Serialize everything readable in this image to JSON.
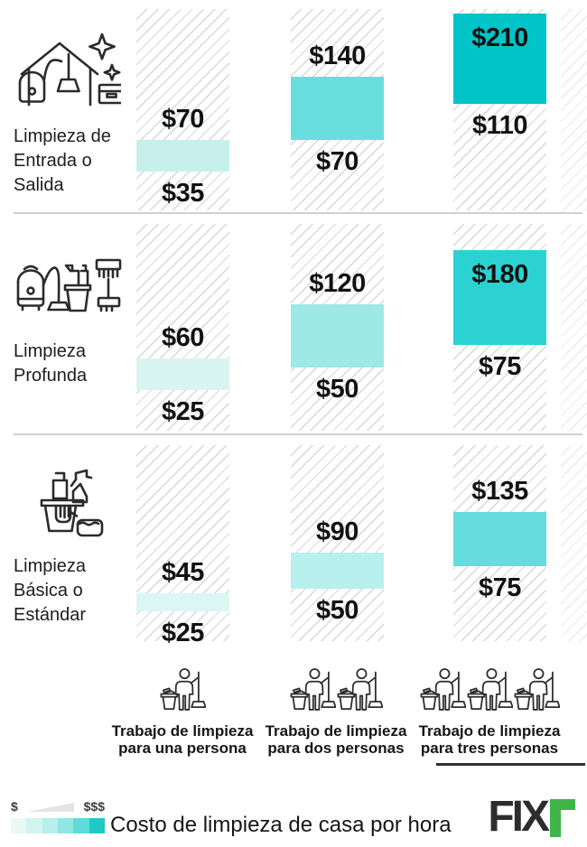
{
  "chart_data": {
    "type": "range-bar-matrix",
    "title": "Costo de limpieza de casa por hora",
    "value_unit": "$ per hora",
    "legend_position": "bottom-left",
    "columns": [
      {
        "label": "Trabajo de limpieza\npara una persona",
        "persons": 1
      },
      {
        "label": "Trabajo de limpieza\npara dos personas",
        "persons": 2
      },
      {
        "label": "Trabajo de limpieza\npara tres personas",
        "persons": 3
      }
    ],
    "rows": [
      {
        "label": "Limpieza de\nEntrada o\nSalida",
        "icon": "move-out-cleaning-icon",
        "ranges": [
          {
            "min": 35,
            "max": 70,
            "min_label": "$35",
            "max_label": "$70",
            "color": "#c7f0ec"
          },
          {
            "min": 70,
            "max": 140,
            "min_label": "$70",
            "max_label": "$140",
            "color": "#68dfde"
          },
          {
            "min": 110,
            "max": 210,
            "min_label": "$110",
            "max_label": "$210",
            "color": "#00c4c8"
          }
        ]
      },
      {
        "label": "Limpieza\nProfunda",
        "icon": "deep-cleaning-icon",
        "ranges": [
          {
            "min": 25,
            "max": 60,
            "min_label": "$25",
            "max_label": "$60",
            "color": "#d9f5f2"
          },
          {
            "min": 50,
            "max": 120,
            "min_label": "$50",
            "max_label": "$120",
            "color": "#9ce9e6"
          },
          {
            "min": 75,
            "max": 180,
            "min_label": "$75",
            "max_label": "$180",
            "color": "#2bd2d1"
          }
        ]
      },
      {
        "label": "Limpieza\nBásica o\nEstándar",
        "icon": "basic-cleaning-icon",
        "ranges": [
          {
            "min": 25,
            "max": 45,
            "min_label": "$25",
            "max_label": "$45",
            "color": "#dcf6f4"
          },
          {
            "min": 50,
            "max": 90,
            "min_label": "$50",
            "max_label": "$90",
            "color": "#b7f0ed"
          },
          {
            "min": 75,
            "max": 135,
            "min_label": "$75",
            "max_label": "$135",
            "color": "#66dcdf"
          }
        ]
      }
    ]
  },
  "legend": {
    "min_symbol": "$",
    "max_symbol": "$$$",
    "scale_colors": [
      "#e8f9f7",
      "#d2f4f1",
      "#b6efeb",
      "#90e7e3",
      "#5edcd9",
      "#1fc9c5"
    ]
  },
  "footer": {
    "title": "Costo de limpieza de casa por hora",
    "brand": "FIX",
    "brand_icon": "fixr-green-r-icon"
  }
}
